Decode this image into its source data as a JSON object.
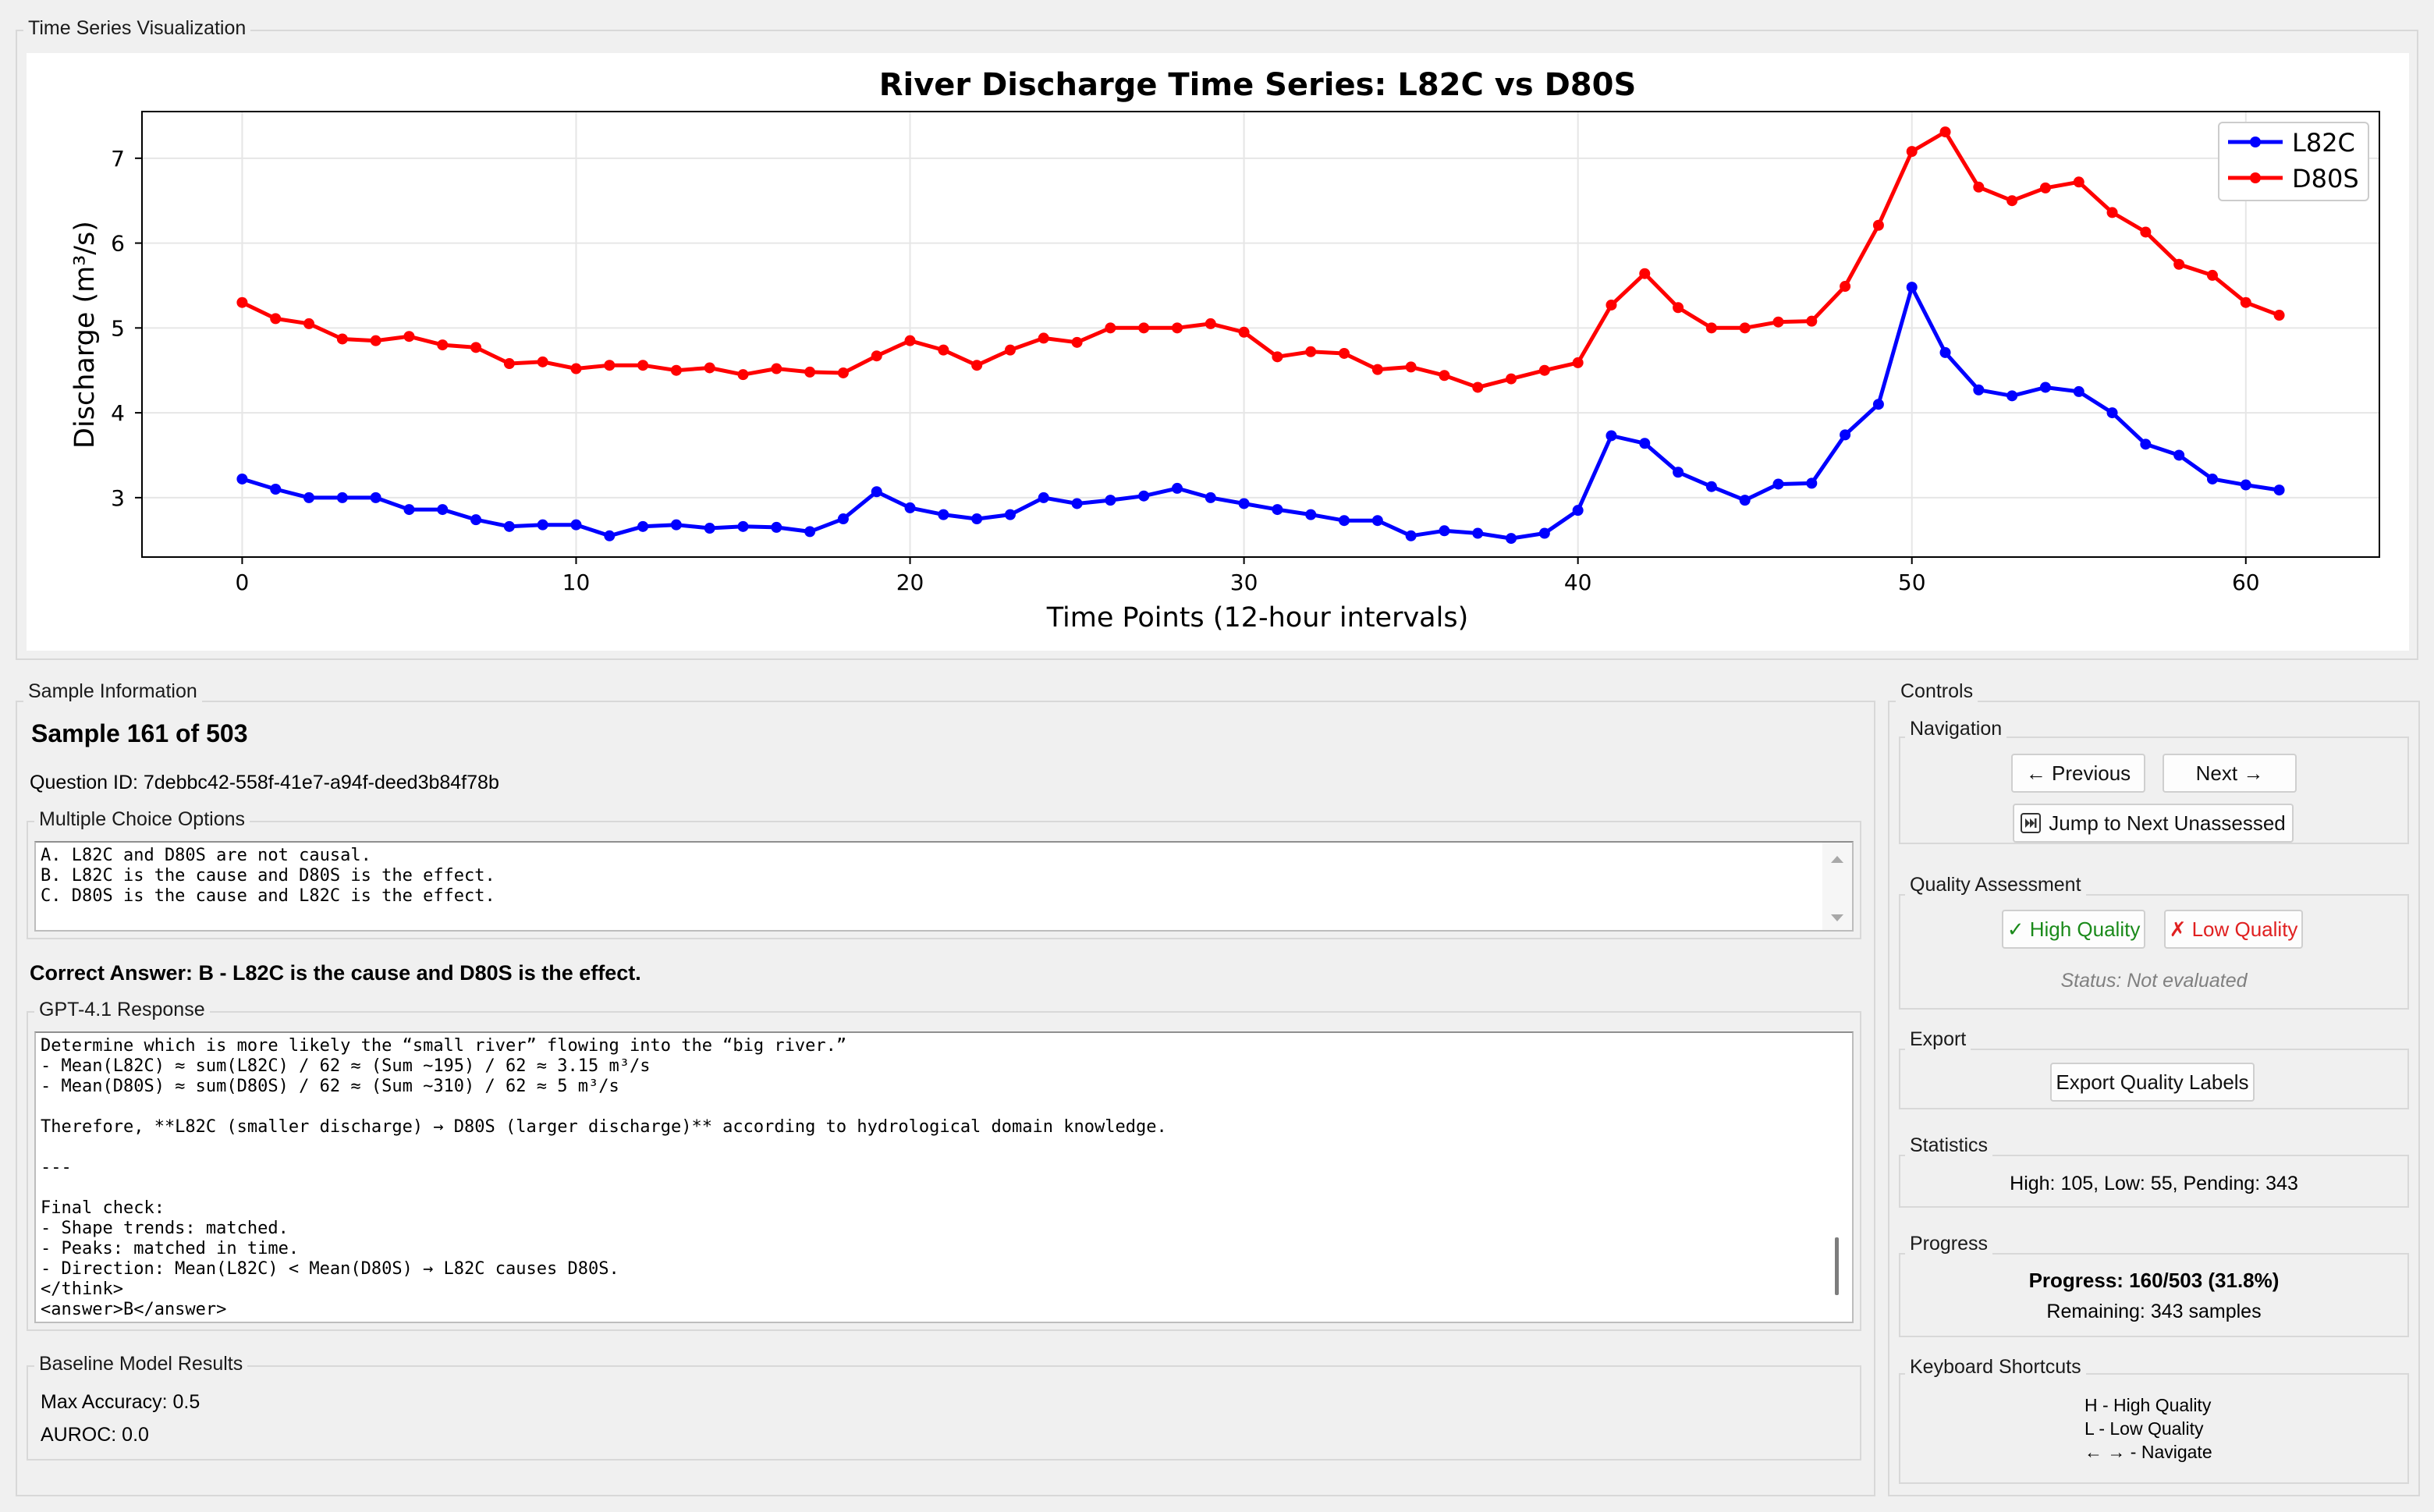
{
  "viz": {
    "group_title": "Time Series Visualization"
  },
  "chart_data": {
    "type": "line",
    "title": "River Discharge Time Series: L82C vs D80S",
    "xlabel": "Time Points (12-hour intervals)",
    "ylabel": "Discharge (m³/s)",
    "xlim": [
      -3,
      64
    ],
    "ylim": [
      2.3,
      7.55
    ],
    "xticks": [
      0,
      10,
      20,
      30,
      40,
      50,
      60
    ],
    "yticks": [
      3,
      4,
      5,
      6,
      7
    ],
    "grid": true,
    "legend_position": "top-right",
    "series": [
      {
        "name": "L82C",
        "color": "#0000ff",
        "values": [
          3.22,
          3.1,
          3.0,
          3.0,
          3.0,
          2.86,
          2.86,
          2.74,
          2.66,
          2.68,
          2.68,
          2.55,
          2.66,
          2.68,
          2.64,
          2.66,
          2.65,
          2.6,
          2.75,
          3.07,
          2.88,
          2.8,
          2.75,
          2.8,
          3.0,
          2.93,
          2.97,
          3.02,
          3.11,
          3.0,
          2.93,
          2.86,
          2.8,
          2.73,
          2.73,
          2.55,
          2.61,
          2.58,
          2.52,
          2.58,
          2.85,
          3.73,
          3.64,
          3.3,
          3.13,
          2.97,
          3.16,
          3.17,
          3.74,
          4.1,
          5.48,
          4.71,
          4.27,
          4.2,
          4.3,
          4.25,
          4.0,
          3.63,
          3.5,
          3.22,
          3.15,
          3.09
        ]
      },
      {
        "name": "D80S",
        "color": "#ff0000",
        "values": [
          5.3,
          5.11,
          5.05,
          4.87,
          4.85,
          4.9,
          4.8,
          4.77,
          4.58,
          4.6,
          4.52,
          4.56,
          4.56,
          4.5,
          4.53,
          4.45,
          4.52,
          4.48,
          4.47,
          4.67,
          4.85,
          4.74,
          4.56,
          4.74,
          4.88,
          4.83,
          5.0,
          5.0,
          5.0,
          5.05,
          4.95,
          4.66,
          4.72,
          4.7,
          4.51,
          4.54,
          4.44,
          4.3,
          4.4,
          4.5,
          4.59,
          5.27,
          5.64,
          5.24,
          5.0,
          5.0,
          5.07,
          5.08,
          5.49,
          6.21,
          7.08,
          7.31,
          6.66,
          6.5,
          6.65,
          6.72,
          6.36,
          6.13,
          5.75,
          5.62,
          5.3,
          5.15
        ]
      }
    ]
  },
  "sample": {
    "group_title": "Sample Information",
    "heading": "Sample 161 of 503",
    "question_id": "Question ID: 7debbc42-558f-41e7-a94f-deed3b84f78b",
    "mc_group_title": "Multiple Choice Options",
    "mc_options": [
      "A. L82C and D80S are not causal.",
      "B. L82C is the cause and D80S is the effect.",
      "C. D80S is the cause and L82C is the effect."
    ],
    "correct_answer": "Correct Answer: B - L82C is the cause and D80S is the effect.",
    "response_group_title": "GPT-4.1 Response",
    "response_lines": [
      "Determine which is more likely the “small river” flowing into the “big river.”",
      "- Mean(L82C) ≈ sum(L82C) / 62 ≈ (Sum ~195) / 62 ≈ 3.15 m³/s",
      "- Mean(D80S) ≈ sum(D80S) / 62 ≈ (Sum ~310) / 62 ≈ 5 m³/s",
      "",
      "Therefore, **L82C (smaller discharge) → D80S (larger discharge)** according to hydrological domain knowledge.",
      "",
      "---",
      "",
      "Final check:",
      "- Shape trends: matched.",
      "- Peaks: matched in time.",
      "- Direction: Mean(L82C) < Mean(D80S) → L82C causes D80S.",
      "</think>",
      "<answer>B</answer>"
    ],
    "baseline_group_title": "Baseline Model Results",
    "max_accuracy": "Max Accuracy: 0.5",
    "auroc": "AUROC: 0.0"
  },
  "controls": {
    "group_title": "Controls",
    "navigation": {
      "title": "Navigation",
      "previous": "← Previous",
      "next": "Next →",
      "jump": "Jump to Next Unassessed",
      "jump_icon": "skip-forward-icon"
    },
    "quality": {
      "title": "Quality Assessment",
      "high": "✓ High Quality",
      "low": "✗ Low Quality",
      "status": "Status: Not evaluated",
      "high_color": "#1a8a1a",
      "low_color": "#e02020"
    },
    "export": {
      "title": "Export",
      "button": "Export Quality Labels"
    },
    "statistics": {
      "title": "Statistics",
      "text": "High: 105, Low: 55, Pending: 343"
    },
    "progress": {
      "title": "Progress",
      "text": "Progress: 160/503 (31.8%)",
      "remaining": "Remaining: 343 samples"
    },
    "shortcuts": {
      "title": "Keyboard Shortcuts",
      "lines": [
        "H - High Quality",
        "L - Low Quality",
        "← → - Navigate"
      ]
    }
  }
}
